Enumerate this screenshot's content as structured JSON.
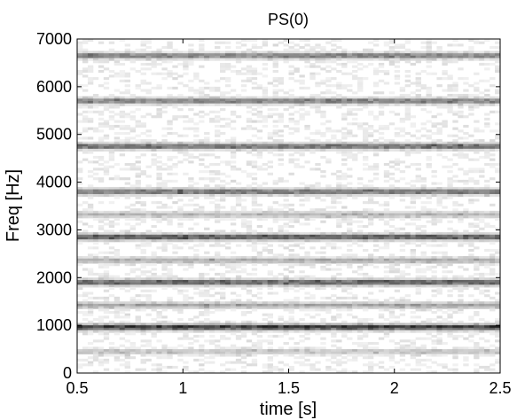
{
  "chart_data": {
    "type": "heatmap",
    "title": "PS(0)",
    "xlabel": "time [s]",
    "ylabel": "Freq [Hz]",
    "xlim": [
      0.5,
      2.5
    ],
    "ylim": [
      0,
      7000
    ],
    "x_ticks": [
      "0.5",
      "1",
      "1.5",
      "2",
      "2.5"
    ],
    "y_ticks": [
      "0",
      "1000",
      "2000",
      "3000",
      "4000",
      "5000",
      "6000",
      "7000"
    ],
    "colormap": "gray (inverted, dark = high power)",
    "colors": {
      "background": "#ffffff",
      "axes": "#000000",
      "high": "#1a1a1a",
      "low": "#ffffff"
    },
    "grid": false,
    "bands": [
      {
        "freq_hz": 450,
        "intensity": 0.25
      },
      {
        "freq_hz": 960,
        "intensity": 0.95
      },
      {
        "freq_hz": 1420,
        "intensity": 0.4
      },
      {
        "freq_hz": 1900,
        "intensity": 0.75
      },
      {
        "freq_hz": 2360,
        "intensity": 0.35
      },
      {
        "freq_hz": 2850,
        "intensity": 0.8
      },
      {
        "freq_hz": 3320,
        "intensity": 0.3
      },
      {
        "freq_hz": 3800,
        "intensity": 0.65
      },
      {
        "freq_hz": 4750,
        "intensity": 0.7
      },
      {
        "freq_hz": 5700,
        "intensity": 0.6
      },
      {
        "freq_hz": 6650,
        "intensity": 0.6
      }
    ]
  }
}
